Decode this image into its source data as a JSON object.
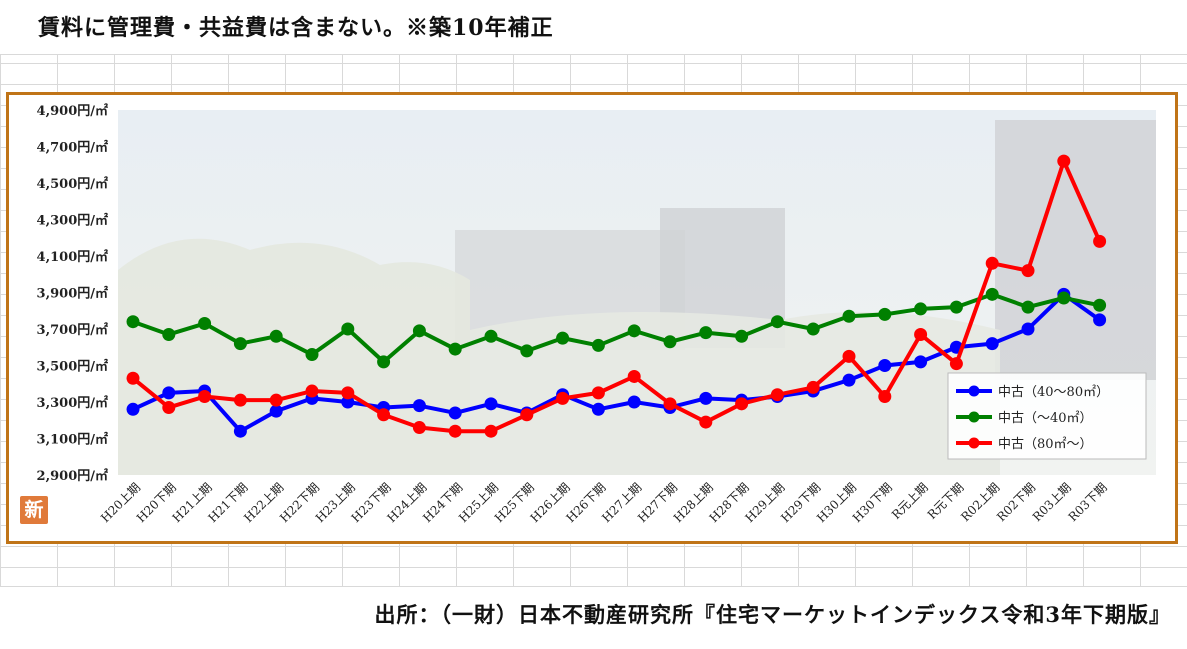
{
  "note": "賃料に管理費・共益費は含まない。※築10年補正",
  "source": "出所：（一財）日本不動産研究所『住宅マーケットインデックス令和3年下期版』",
  "badge": "新",
  "chart_data": {
    "type": "line",
    "title": "",
    "xlabel": "",
    "ylabel": "",
    "ylim": [
      2900,
      4900
    ],
    "yticks": [
      2900,
      3100,
      3300,
      3500,
      3700,
      3900,
      4100,
      4300,
      4500,
      4700,
      4900
    ],
    "ytick_labels": [
      "2,900円/㎡",
      "3,100円/㎡",
      "3,300円/㎡",
      "3,500円/㎡",
      "3,700円/㎡",
      "3,900円/㎡",
      "4,100円/㎡",
      "4,300円/㎡",
      "4,500円/㎡",
      "4,700円/㎡",
      "4,900円/㎡"
    ],
    "categories": [
      "H20上期",
      "H20下期",
      "H21上期",
      "H21下期",
      "H22上期",
      "H22下期",
      "H23上期",
      "H23下期",
      "H24上期",
      "H24下期",
      "H25上期",
      "H25下期",
      "H26上期",
      "H26下期",
      "H27上期",
      "H27下期",
      "H28上期",
      "H28下期",
      "H29上期",
      "H29下期",
      "H30上期",
      "H30下期",
      "R元上期",
      "R元下期",
      "R02上期",
      "R02下期",
      "R03上期",
      "R03下期"
    ],
    "legend_position": "bottom-right",
    "grid": false,
    "series": [
      {
        "name": "中古（40～80㎡）",
        "color": "#0000ff",
        "values": [
          3260,
          3350,
          3360,
          3140,
          3250,
          3320,
          3300,
          3270,
          3280,
          3240,
          3290,
          3240,
          3340,
          3260,
          3300,
          3270,
          3320,
          3310,
          3330,
          3360,
          3420,
          3500,
          3520,
          3600,
          3620,
          3700,
          3890,
          3750
        ]
      },
      {
        "name": "中古（～40㎡）",
        "color": "#008000",
        "values": [
          3740,
          3670,
          3730,
          3620,
          3660,
          3560,
          3700,
          3520,
          3690,
          3590,
          3660,
          3580,
          3650,
          3610,
          3690,
          3630,
          3680,
          3660,
          3740,
          3700,
          3770,
          3780,
          3810,
          3820,
          3890,
          3820,
          3870,
          3830
        ]
      },
      {
        "name": "中古（80㎡～）",
        "color": "#ff0000",
        "values": [
          3430,
          3270,
          3330,
          3310,
          3310,
          3360,
          3350,
          3230,
          3160,
          3140,
          3140,
          3230,
          3320,
          3350,
          3440,
          3290,
          3190,
          3290,
          3340,
          3380,
          3550,
          3330,
          3670,
          3510,
          4060,
          4020,
          4620,
          4180
        ]
      }
    ]
  }
}
